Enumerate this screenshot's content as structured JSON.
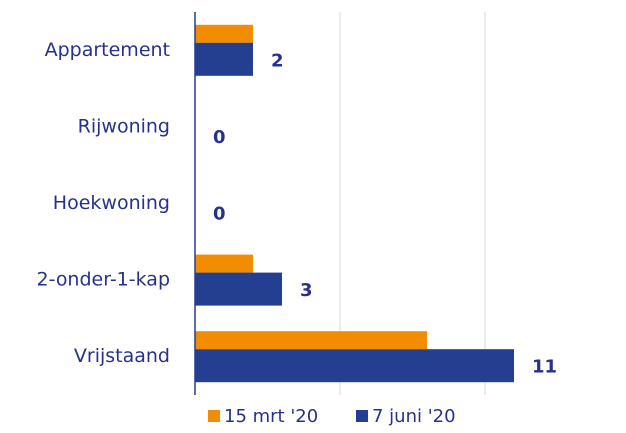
{
  "chart_data": {
    "type": "bar",
    "orientation": "horizontal",
    "categories": [
      "Appartement",
      "Rijwoning",
      "Hoekwoning",
      "2-onder-1-kap",
      "Vrijstaand"
    ],
    "series": [
      {
        "name": "15 mrt '20",
        "color": "#f28c00",
        "values": [
          2,
          0,
          0,
          2,
          8
        ]
      },
      {
        "name": "7 juni '20",
        "color": "#243f8f",
        "values": [
          2,
          0,
          0,
          3,
          11
        ]
      }
    ],
    "xlim": [
      0,
      12
    ],
    "xticks": [
      0,
      5,
      10
    ],
    "grid": true,
    "legend": "bottom"
  }
}
